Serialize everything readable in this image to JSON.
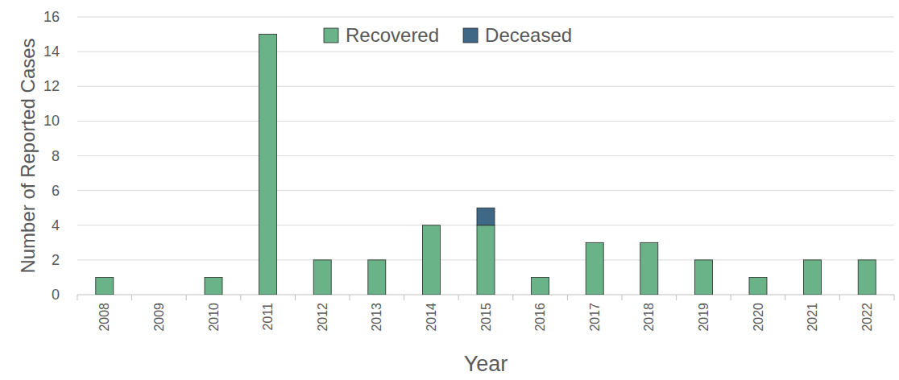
{
  "chart_data": {
    "type": "bar",
    "stacked": true,
    "grid": true,
    "legend": "top",
    "x_label": "Year",
    "y_label": "Number of Reported Cases",
    "categories": [
      "2008",
      "2009",
      "2010",
      "2011",
      "2012",
      "2013",
      "2014",
      "2015",
      "2016",
      "2017",
      "2018",
      "2019",
      "2020",
      "2021",
      "2022"
    ],
    "series": [
      {
        "name": "Recovered",
        "color": "#6ab389",
        "values": [
          1,
          0,
          1,
          15,
          2,
          2,
          4,
          4,
          1,
          3,
          3,
          2,
          1,
          2,
          2
        ]
      },
      {
        "name": "Deceased",
        "color": "#3f6887",
        "values": [
          0,
          0,
          0,
          0,
          0,
          0,
          0,
          1,
          0,
          0,
          0,
          0,
          0,
          0,
          0
        ]
      }
    ],
    "ylim": [
      0,
      16
    ],
    "yticks": [
      0,
      2,
      4,
      6,
      8,
      10,
      12,
      14,
      16
    ]
  }
}
